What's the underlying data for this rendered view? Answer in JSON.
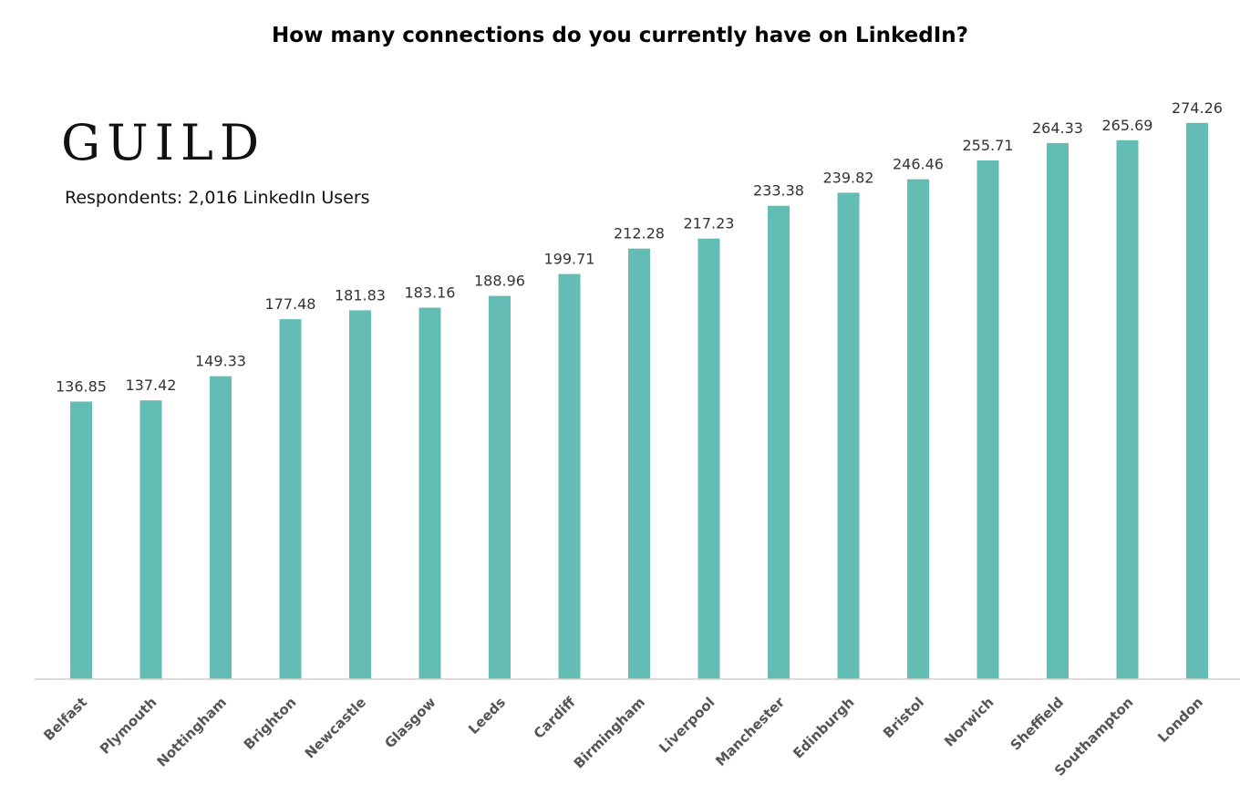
{
  "header": {
    "brand": "GUILD",
    "respondents": "Respondents: 2,016 LinkedIn Users"
  },
  "chart_data": {
    "type": "bar",
    "title": "How many connections do you currently have on LinkedIn?",
    "xlabel": "",
    "ylabel": "",
    "ylim": [
      0,
      280
    ],
    "grid": false,
    "bar_color": "#64bdb4",
    "axis_color": "#d0d0d0",
    "categories": [
      "Belfast",
      "Plymouth",
      "Nottingham",
      "Brighton",
      "Newcastle",
      "Glasgow",
      "Leeds",
      "Cardiff",
      "Birmingham",
      "Liverpool",
      "Manchester",
      "Edinburgh",
      "Bristol",
      "Norwich",
      "Sheffield",
      "Southampton",
      "London"
    ],
    "values": [
      136.85,
      137.42,
      149.33,
      177.48,
      181.83,
      183.16,
      188.96,
      199.71,
      212.28,
      217.23,
      233.38,
      239.82,
      246.46,
      255.71,
      264.33,
      265.69,
      274.26
    ],
    "value_labels": [
      "136.85",
      "137.42",
      "149.33",
      "177.48",
      "181.83",
      "183.16",
      "188.96",
      "199.71",
      "212.28",
      "217.23",
      "233.38",
      "239.82",
      "246.46",
      "255.71",
      "264.33",
      "265.69",
      "274.26"
    ]
  }
}
